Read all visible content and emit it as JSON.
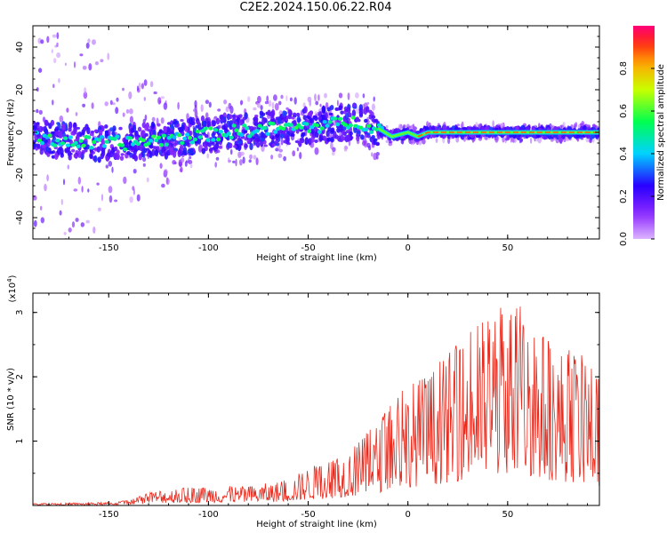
{
  "title": "C2E2.2024.150.06.22.R04",
  "colors": {
    "snr_line": "#e8291c",
    "spectrogram_low": "#8a00ff",
    "spectrogram_high": "#ff0040"
  },
  "chart_data": [
    {
      "type": "heatmap",
      "xlabel": "Height of straight line (km)",
      "ylabel": "Frequency (Hz)",
      "xlim": [
        -188,
        96
      ],
      "ylim": [
        -50,
        50
      ],
      "xticks": [
        -150,
        -100,
        -50,
        0,
        50
      ],
      "yticks": [
        -40,
        -20,
        0,
        20,
        40
      ],
      "colorbar": {
        "label": "Normalized spectral amplitude",
        "range": [
          0,
          1
        ],
        "ticks": [
          "0.0",
          "0.2",
          "0.4",
          "0.6",
          "0.8"
        ],
        "colormap": "rainbow (purple to red)"
      },
      "ridge": [
        {
          "x": -185,
          "y": -3
        },
        {
          "x": -160,
          "y": -5
        },
        {
          "x": -140,
          "y": -5
        },
        {
          "x": -120,
          "y": -3
        },
        {
          "x": -100,
          "y": -1
        },
        {
          "x": -80,
          "y": 1
        },
        {
          "x": -60,
          "y": 2
        },
        {
          "x": -45,
          "y": 3
        },
        {
          "x": -35,
          "y": 4
        },
        {
          "x": -25,
          "y": 5
        },
        {
          "x": -15,
          "y": 2
        },
        {
          "x": -8,
          "y": -2
        },
        {
          "x": 0,
          "y": 0
        },
        {
          "x": 5,
          "y": -2
        },
        {
          "x": 10,
          "y": 0
        },
        {
          "x": 30,
          "y": 0
        },
        {
          "x": 60,
          "y": 0
        },
        {
          "x": 96,
          "y": 0
        }
      ]
    },
    {
      "type": "line",
      "xlabel": "Height of straight line (km)",
      "ylabel": "SNR (10 * v/v)",
      "y_multiplier": "(x10",
      "y_multiplier_exp": "4",
      "y_multiplier_close": ")",
      "xlim": [
        -188,
        96
      ],
      "ylim": [
        0,
        3.3
      ],
      "xticks": [
        -150,
        -100,
        -50,
        0,
        50
      ],
      "yticks": [
        1,
        2,
        3
      ],
      "envelope": [
        {
          "x": -188,
          "y": 0.03
        },
        {
          "x": -150,
          "y": 0.05
        },
        {
          "x": -140,
          "y": 0.08
        },
        {
          "x": -125,
          "y": 0.25
        },
        {
          "x": -100,
          "y": 0.3
        },
        {
          "x": -80,
          "y": 0.3
        },
        {
          "x": -60,
          "y": 0.4
        },
        {
          "x": -50,
          "y": 0.6
        },
        {
          "x": -40,
          "y": 0.7
        },
        {
          "x": -25,
          "y": 1.0
        },
        {
          "x": -15,
          "y": 1.3
        },
        {
          "x": -10,
          "y": 1.6
        },
        {
          "x": 0,
          "y": 1.9
        },
        {
          "x": 15,
          "y": 2.2
        },
        {
          "x": 30,
          "y": 2.7
        },
        {
          "x": 50,
          "y": 3.3
        },
        {
          "x": 60,
          "y": 3.0
        },
        {
          "x": 75,
          "y": 2.5
        },
        {
          "x": 90,
          "y": 2.3
        },
        {
          "x": 96,
          "y": 2.0
        }
      ]
    }
  ]
}
